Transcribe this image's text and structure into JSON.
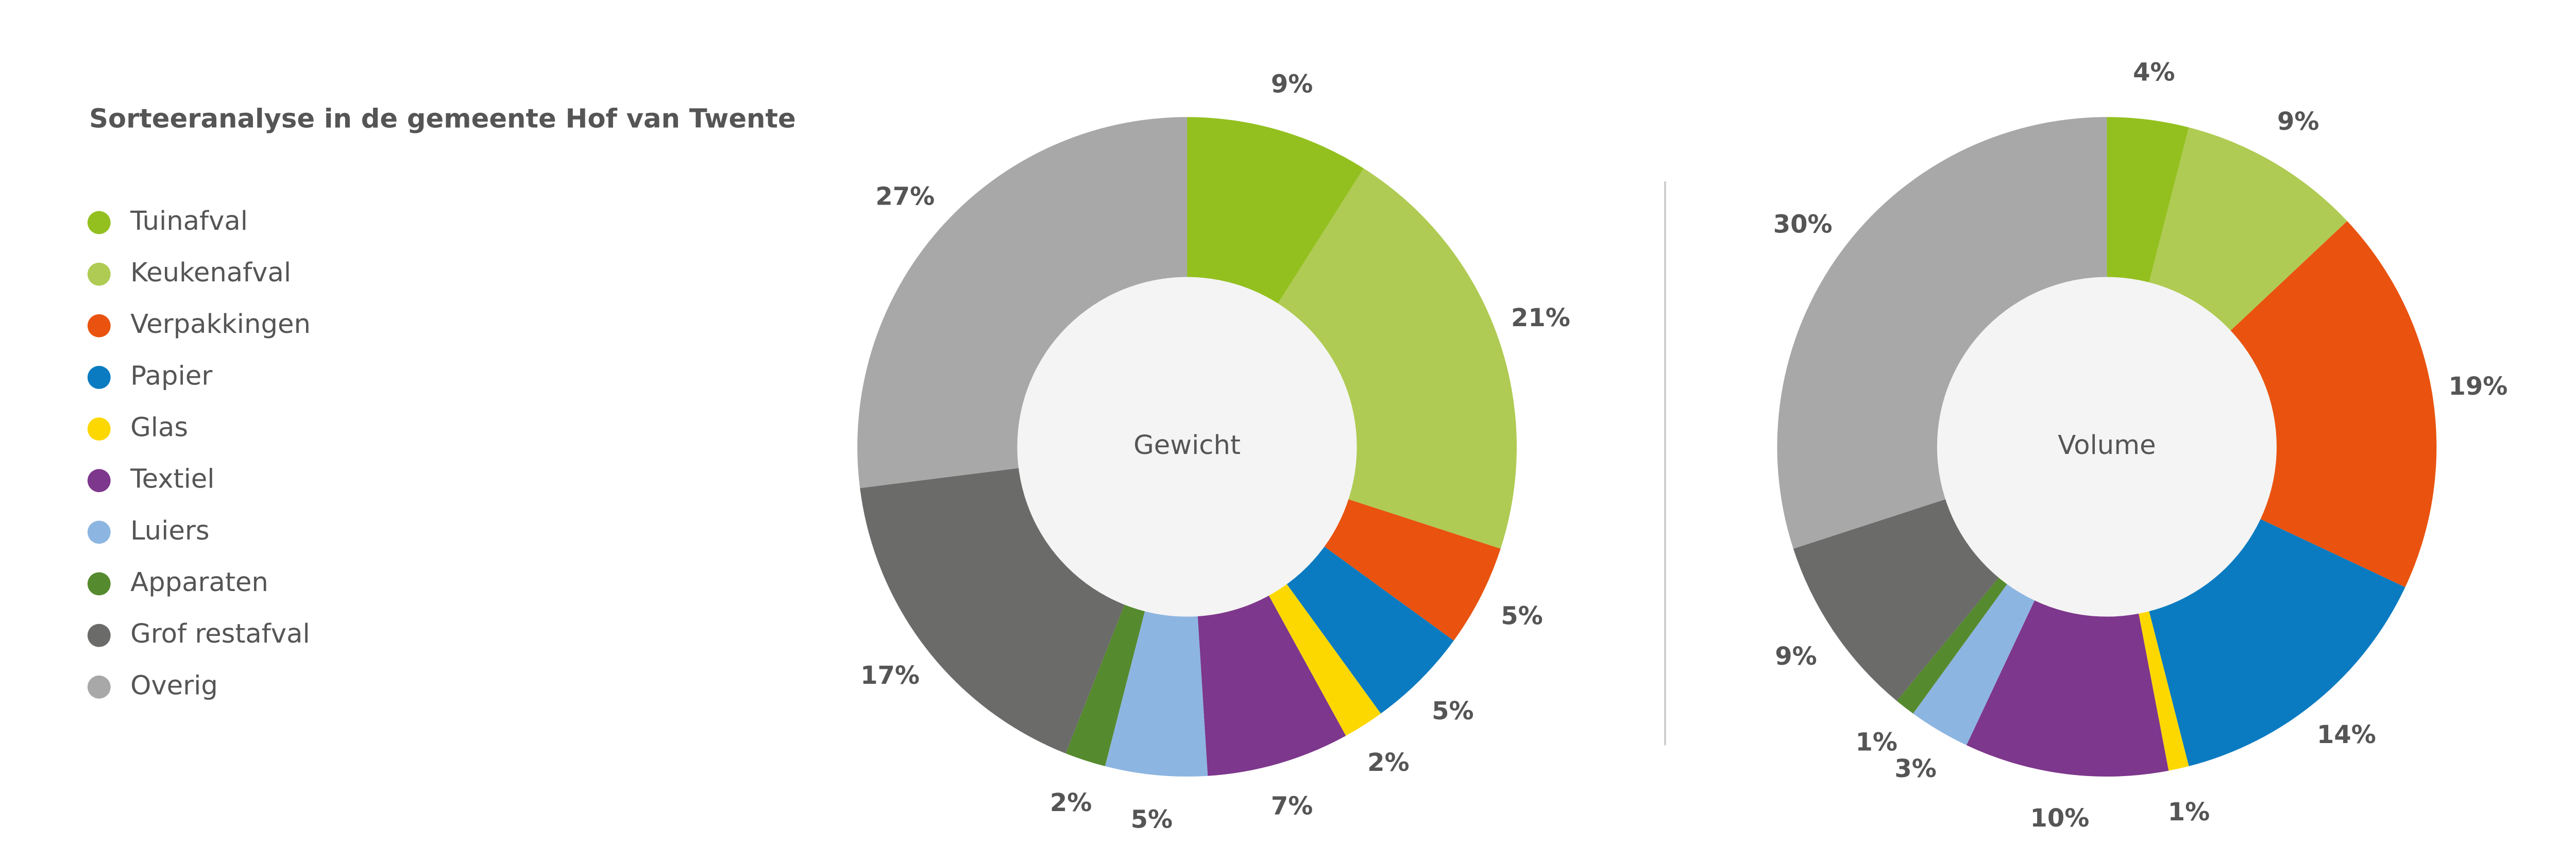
{
  "chart_data": [
    {
      "type": "donut",
      "title": "Sorteeranalyse in de gemeente Hof van Twente",
      "label": "Gewicht",
      "categories": [
        "Tuinafval",
        "Keukenafval",
        "Verpakkingen",
        "Papier",
        "Glas",
        "Textiel",
        "Luiers",
        "Apparaten",
        "Grof restafval",
        "Overig"
      ],
      "colors": [
        "#93c01f",
        "#afcb53",
        "#e9530f",
        "#0b7bc1",
        "#fcd800",
        "#7d378c",
        "#8db5e1",
        "#568a2e",
        "#6b6b6a",
        "#a8a8a9"
      ],
      "values": [
        9,
        21,
        5,
        5,
        2,
        7,
        5,
        2,
        17,
        27
      ],
      "value_labels": [
        "9%",
        "21%",
        "5%",
        "5%",
        "2%",
        "7%",
        "5%",
        "2%",
        "17%",
        "27%"
      ]
    },
    {
      "type": "donut",
      "label": "Volume",
      "values": [
        4,
        9,
        19,
        14,
        1,
        10,
        3,
        1,
        9,
        30
      ],
      "value_labels": [
        "4%",
        "9%",
        "19%",
        "14%",
        "1%",
        "10%",
        "3%",
        "1%",
        "9%",
        "30%"
      ]
    }
  ]
}
